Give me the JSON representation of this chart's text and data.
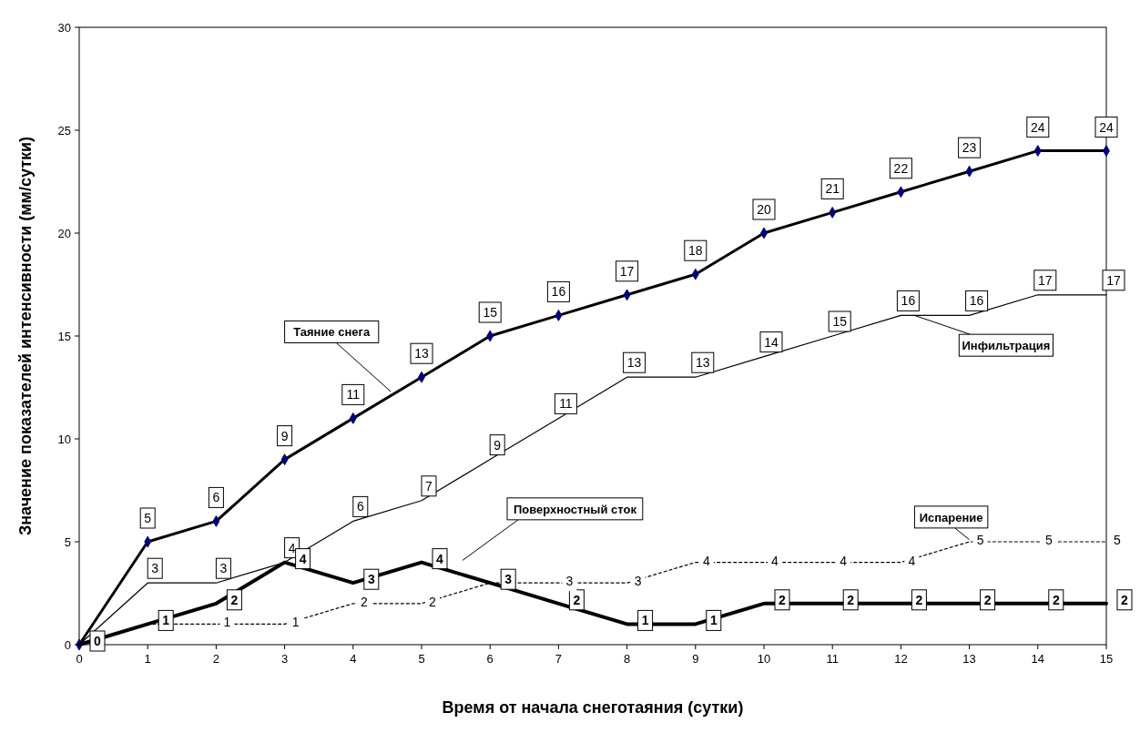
{
  "chart_data": {
    "type": "line",
    "xlabel": "Время от начала снеготаяния (сутки)",
    "ylabel": "Значение показателей интенсивности (мм/сутки)",
    "x": [
      0,
      1,
      2,
      3,
      4,
      5,
      6,
      7,
      8,
      9,
      10,
      11,
      12,
      13,
      14,
      15
    ],
    "xlim": [
      0,
      15
    ],
    "xticks": [
      0,
      1,
      2,
      3,
      4,
      5,
      6,
      7,
      8,
      9,
      10,
      11,
      12,
      13,
      14,
      15
    ],
    "ylim": [
      0,
      30
    ],
    "yticks": [
      0,
      5,
      10,
      15,
      20,
      25,
      30
    ],
    "grid": false,
    "legend": false,
    "series": [
      {
        "name": "Таяние снега",
        "color": "#000000",
        "marker": "diamond",
        "line_style": "solid",
        "values": [
          0,
          5,
          6,
          9,
          11,
          13,
          15,
          16,
          17,
          18,
          20,
          21,
          22,
          23,
          24,
          24
        ],
        "value_labels": [
          null,
          "5",
          "6",
          "9",
          "11",
          "13",
          "15",
          "16",
          "17",
          "18",
          "20",
          "21",
          "22",
          "23",
          "24",
          "24"
        ]
      },
      {
        "name": "Инфильтрация",
        "color": "#000000",
        "marker": "none",
        "line_style": "solid",
        "values": [
          0,
          3,
          3,
          4,
          6,
          7,
          9,
          11,
          13,
          13,
          14,
          15,
          16,
          16,
          17,
          17
        ],
        "value_labels": [
          null,
          "3",
          "3",
          "4",
          "6",
          "7",
          "9",
          "11",
          "13",
          "13",
          "14",
          "15",
          "16",
          "16",
          "17",
          "17"
        ]
      },
      {
        "name": "Поверхностный сток",
        "color": "#000000",
        "marker": "none",
        "line_style": "solid",
        "values": [
          0,
          1,
          2,
          4,
          3,
          4,
          3,
          2,
          1,
          1,
          2,
          2,
          2,
          2,
          2,
          2
        ],
        "value_labels": [
          "0",
          "1",
          "2",
          "4",
          "3",
          "4",
          "3",
          "2",
          "1",
          "1",
          "2",
          "2",
          "2",
          "2",
          "2",
          "2"
        ]
      },
      {
        "name": "Испарение",
        "color": "#000000",
        "marker": "none",
        "line_style": "dotted",
        "values": [
          0,
          1,
          1,
          1,
          2,
          2,
          3,
          3,
          3,
          4,
          4,
          4,
          4,
          5,
          5,
          5
        ],
        "value_labels": [
          null,
          null,
          "1",
          "1",
          "2",
          "2",
          null,
          "3",
          "3",
          "4",
          "4",
          "4",
          "4",
          "5",
          "5",
          "5"
        ]
      }
    ]
  }
}
